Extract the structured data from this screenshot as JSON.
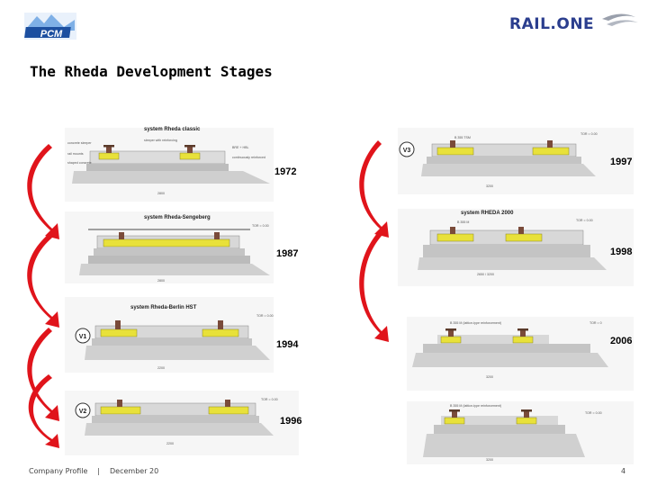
{
  "slide": {
    "title": "The Rheda Development Stages",
    "footer": {
      "company": "Company Profile",
      "separator": "|",
      "date": "December 20",
      "page": "4"
    },
    "logos": {
      "left_text": "PCM",
      "right_text": "RAIL.ONE"
    }
  },
  "stages_left": [
    {
      "caption": "system Rheda classic",
      "year": "1972"
    },
    {
      "caption": "system Rheda-Sengeberg",
      "year": "1987"
    },
    {
      "caption": "system Rheda-Berlin HST",
      "badge": "V1",
      "year": "1994"
    },
    {
      "badge": "V2",
      "year": "1996"
    }
  ],
  "stages_right": [
    {
      "badge": "V3",
      "year": "1997"
    },
    {
      "caption": "system RHEDA 2000",
      "year": "1998"
    },
    {
      "year": "2006"
    },
    {
      "year": ""
    }
  ],
  "colors": {
    "arrow": "#e0141b",
    "sleeper": "#e8e13a",
    "slab": "#cccccc",
    "accent": "#2b3e8e"
  }
}
